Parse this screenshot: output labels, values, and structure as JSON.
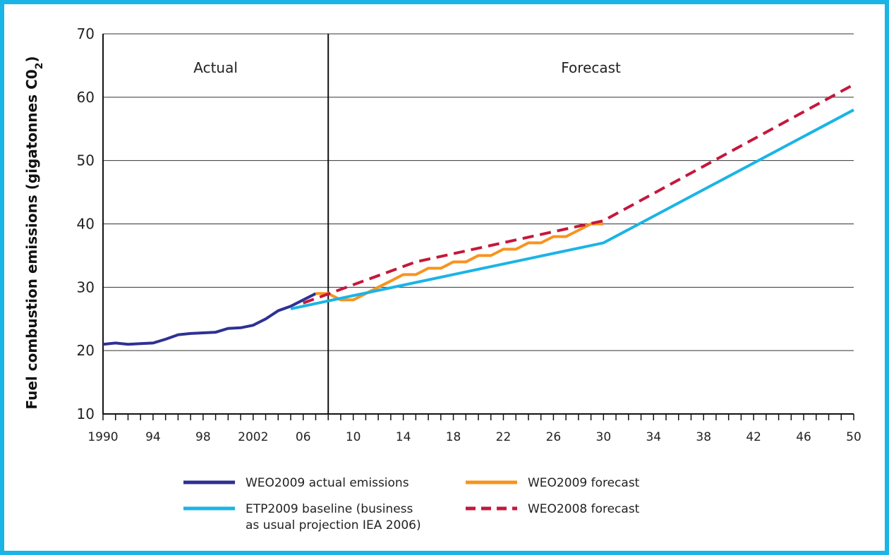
{
  "chart_data": {
    "type": "line",
    "ylabel": "Fuel combustion emissions (gigatonnes C0",
    "ylabel_sub": "2",
    "ylabel_close": ")",
    "xlim": [
      1990,
      2050
    ],
    "ylim": [
      10,
      70
    ],
    "y_ticks": [
      10,
      20,
      30,
      40,
      50,
      60,
      70
    ],
    "x_tick_labels": [
      {
        "x": 1990,
        "label": "1990"
      },
      {
        "x": 1994,
        "label": "94"
      },
      {
        "x": 1998,
        "label": "98"
      },
      {
        "x": 2002,
        "label": "2002"
      },
      {
        "x": 2006,
        "label": "06"
      },
      {
        "x": 2010,
        "label": "10"
      },
      {
        "x": 2014,
        "label": "14"
      },
      {
        "x": 2018,
        "label": "18"
      },
      {
        "x": 2022,
        "label": "22"
      },
      {
        "x": 2026,
        "label": "26"
      },
      {
        "x": 2030,
        "label": "30"
      },
      {
        "x": 2034,
        "label": "34"
      },
      {
        "x": 2038,
        "label": "38"
      },
      {
        "x": 2042,
        "label": "42"
      },
      {
        "x": 2046,
        "label": "46"
      },
      {
        "x": 2050,
        "label": "50"
      }
    ],
    "grid": "horizontal",
    "divider_x": 2008,
    "regions": [
      {
        "label": "Actual",
        "x": 1999
      },
      {
        "label": "Forecast",
        "x": 2029
      }
    ],
    "legend_position": "bottom",
    "series": [
      {
        "name": "WEO2009 actual emissions",
        "color": "#2e3192",
        "style": "solid",
        "x": [
          1990,
          1991,
          1992,
          1993,
          1994,
          1995,
          1996,
          1997,
          1998,
          1999,
          2000,
          2001,
          2002,
          2003,
          2004,
          2005,
          2006,
          2007
        ],
        "y": [
          21.0,
          21.2,
          21.0,
          21.1,
          21.2,
          21.8,
          22.5,
          22.7,
          22.8,
          22.9,
          23.5,
          23.6,
          24.0,
          25.0,
          26.3,
          27.0,
          28.0,
          29.0
        ]
      },
      {
        "name": "WEO2009 forecast",
        "color": "#f7941d",
        "style": "solid",
        "x": [
          2007,
          2008,
          2009,
          2010,
          2011,
          2012,
          2013,
          2014,
          2015,
          2016,
          2017,
          2018,
          2019,
          2020,
          2021,
          2022,
          2023,
          2024,
          2025,
          2026,
          2027,
          2028,
          2029,
          2030
        ],
        "y": [
          29.0,
          29.0,
          28.0,
          28.0,
          29.0,
          30.0,
          31.0,
          32.0,
          32.0,
          33.0,
          33.0,
          34.0,
          34.0,
          35.0,
          35.0,
          36.0,
          36.0,
          37.0,
          37.0,
          38.0,
          38.0,
          39.0,
          40.0,
          40.0
        ]
      },
      {
        "name": "ETP2009 baseline (business as usual projection IEA 2006)",
        "name_lines": [
          "ETP2009 baseline (business",
          "as usual projection IEA 2006)"
        ],
        "color": "#1ab4e6",
        "style": "solid",
        "x": [
          2005,
          2030,
          2050
        ],
        "y": [
          26.6,
          37.0,
          58.0
        ]
      },
      {
        "name": "WEO2008 forecast",
        "color": "#c4183c",
        "style": "dashed",
        "x": [
          2006,
          2015,
          2030,
          2050
        ],
        "y": [
          27.5,
          34.0,
          40.5,
          62.0
        ]
      }
    ]
  }
}
